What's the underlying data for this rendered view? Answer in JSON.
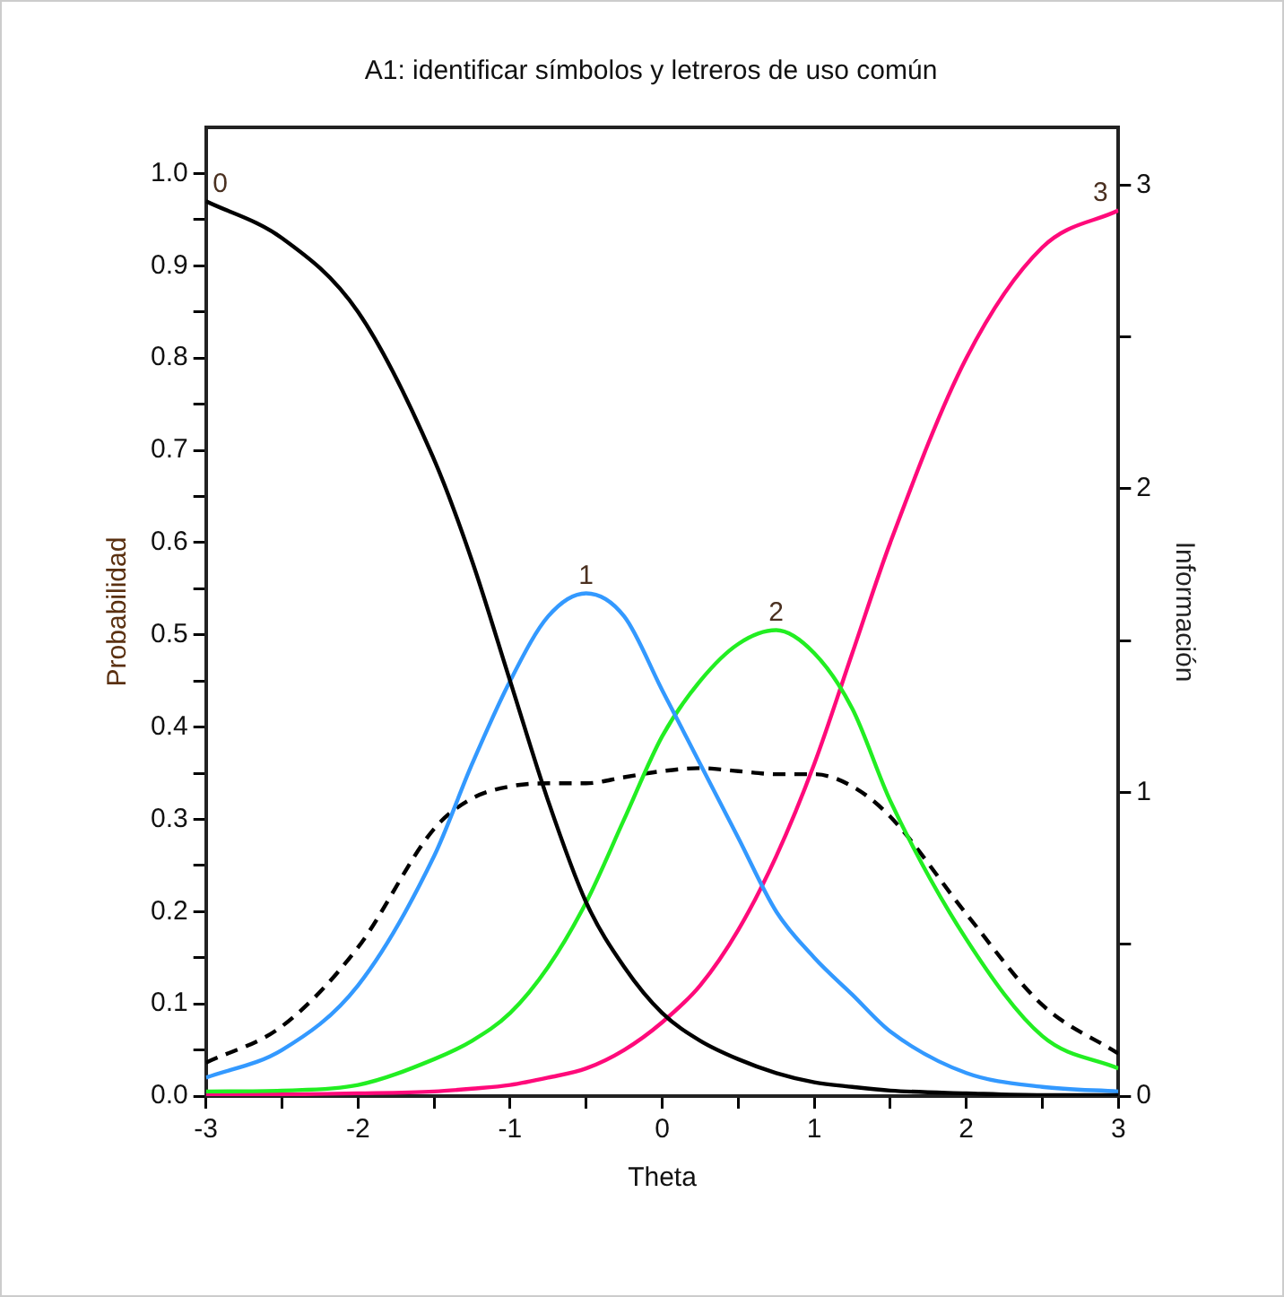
{
  "chart_data": {
    "type": "line",
    "title": "A1: identificar símbolos y letreros de uso común",
    "xlabel": "Theta",
    "ylabel": "Probabilidad",
    "y2label": "Información",
    "x": [
      -3,
      -2.5,
      -2,
      -1.5,
      -1.25,
      -1,
      -0.75,
      -0.5,
      -0.25,
      0,
      0.25,
      0.5,
      0.75,
      1,
      1.25,
      1.5,
      2,
      2.5,
      3
    ],
    "series": [
      {
        "name": "0",
        "color": "#000000",
        "values": [
          0.97,
          0.93,
          0.85,
          0.69,
          0.58,
          0.45,
          0.32,
          0.21,
          0.14,
          0.09,
          0.06,
          0.04,
          0.025,
          0.015,
          0.01,
          0.006,
          0.003,
          0.001,
          0.001
        ]
      },
      {
        "name": "1",
        "color": "#3399ff",
        "values": [
          0.02,
          0.05,
          0.12,
          0.26,
          0.36,
          0.45,
          0.52,
          0.545,
          0.52,
          0.44,
          0.36,
          0.28,
          0.2,
          0.15,
          0.11,
          0.07,
          0.025,
          0.01,
          0.005
        ]
      },
      {
        "name": "2",
        "color": "#22ee22",
        "values": [
          0.005,
          0.006,
          0.012,
          0.04,
          0.06,
          0.09,
          0.14,
          0.21,
          0.3,
          0.39,
          0.45,
          0.49,
          0.505,
          0.48,
          0.42,
          0.32,
          0.17,
          0.065,
          0.03
        ]
      },
      {
        "name": "3",
        "color": "#ff0a7a",
        "values": [
          0.002,
          0.002,
          0.003,
          0.005,
          0.008,
          0.012,
          0.02,
          0.03,
          0.05,
          0.08,
          0.12,
          0.18,
          0.26,
          0.36,
          0.48,
          0.6,
          0.8,
          0.92,
          0.96
        ]
      },
      {
        "color": "#000000",
        "axis": "y2",
        "line_style": "dashed",
        "values": [
          0.11,
          0.23,
          0.49,
          0.88,
          0.98,
          1.02,
          1.03,
          1.03,
          1.05,
          1.07,
          1.08,
          1.07,
          1.06,
          1.06,
          1.02,
          0.92,
          0.6,
          0.3,
          0.14
        ]
      }
    ],
    "xlim": [
      -3,
      3
    ],
    "xticks": [
      -3,
      {
        "value": -2.5,
        "label": null
      },
      -2,
      {
        "value": -1.5,
        "label": null
      },
      -1,
      {
        "value": -0.5,
        "label": null
      },
      0,
      {
        "value": 0.5,
        "label": null
      },
      1,
      {
        "value": 1.5,
        "label": null
      },
      2,
      {
        "value": 2.5,
        "label": null
      },
      3
    ],
    "ylim": [
      0,
      1.05
    ],
    "yticks": [
      {
        "value": 0,
        "label": "0.0"
      },
      {
        "value": 0.05,
        "label": null
      },
      0.1,
      {
        "value": 0.15,
        "label": null
      },
      0.2,
      {
        "value": 0.25,
        "label": null
      },
      0.3,
      {
        "value": 0.35,
        "label": null
      },
      0.4,
      {
        "value": 0.45,
        "label": null
      },
      0.5,
      {
        "value": 0.55,
        "label": null
      },
      0.6,
      {
        "value": 0.65,
        "label": null
      },
      0.7,
      {
        "value": 0.75,
        "label": null
      },
      0.8,
      {
        "value": 0.85,
        "label": null
      },
      0.9,
      {
        "value": 0.95,
        "label": null
      },
      {
        "value": 1,
        "label": "1.0"
      }
    ],
    "y2lim": [
      0,
      3.19
    ],
    "y2ticks": [
      0,
      {
        "value": 0.5,
        "label": null
      },
      1,
      {
        "value": 1.5,
        "label": null
      },
      2,
      {
        "value": 2.5,
        "label": null
      },
      3
    ],
    "grid": false,
    "legend": false,
    "marker": "none",
    "line_style": "solid"
  }
}
